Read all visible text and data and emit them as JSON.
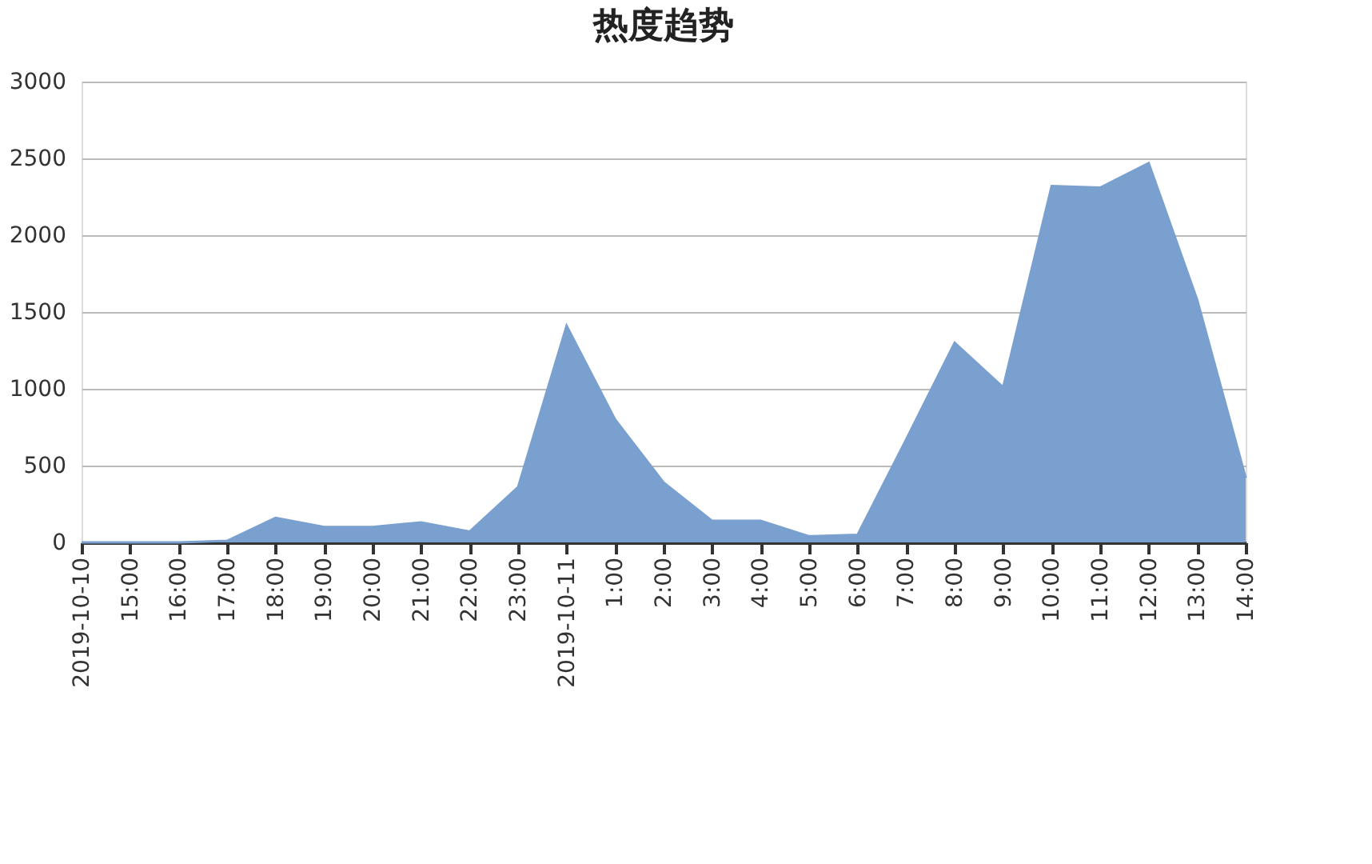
{
  "chart_data": {
    "type": "area",
    "title": "热度趋势",
    "categories": [
      "2019-10-10",
      "15:00",
      "16:00",
      "17:00",
      "18:00",
      "19:00",
      "20:00",
      "21:00",
      "22:00",
      "23:00",
      "2019-10-11",
      "1:00",
      "2:00",
      "3:00",
      "4:00",
      "5:00",
      "6:00",
      "7:00",
      "8:00",
      "9:00",
      "10:00",
      "11:00",
      "12:00",
      "13:00",
      "14:00"
    ],
    "series": [
      {
        "color": "#7aa0cf",
        "values": [
          0,
          0,
          0,
          10,
          160,
          100,
          100,
          130,
          70,
          360,
          1410,
          800,
          390,
          140,
          140,
          40,
          50,
          670,
          1300,
          1010,
          2320,
          2310,
          2470,
          1580,
          420
        ]
      }
    ],
    "ylim": [
      0,
      3000
    ],
    "yticks": [
      0,
      500,
      1000,
      1500,
      2000,
      2500,
      3000
    ],
    "grid": "y",
    "legend": false
  }
}
